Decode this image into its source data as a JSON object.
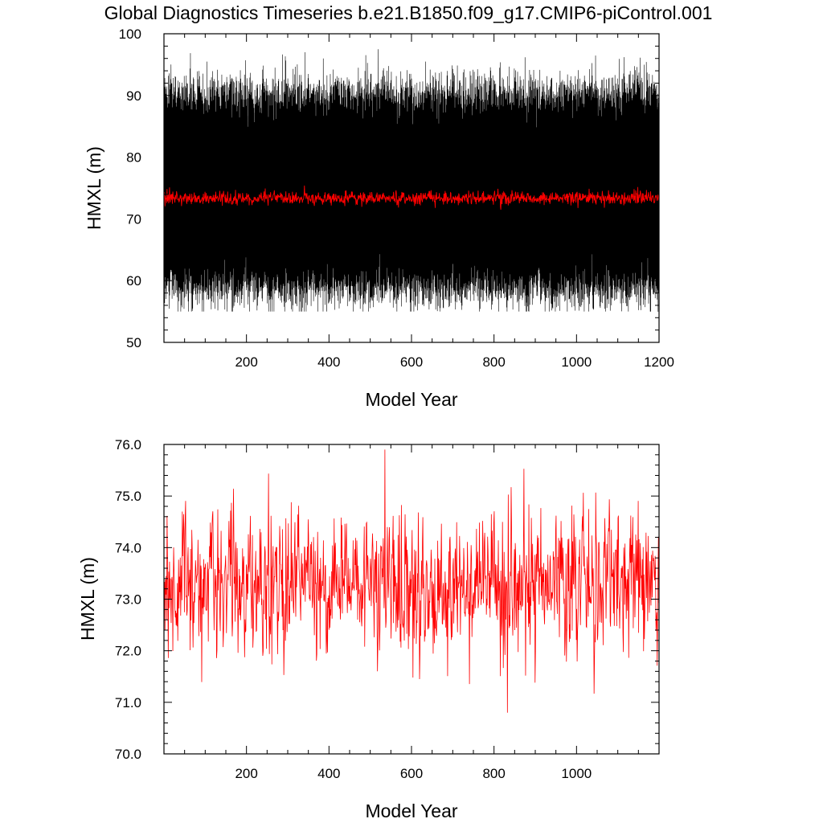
{
  "title": "Global Diagnostics Timeseries b.e21.B1850.f09_g17.CMIP6-piControl.001",
  "colors": {
    "monthly": "#000000",
    "annual": "#ff0000"
  },
  "chart_data": [
    {
      "type": "line",
      "xlabel": "Model Year",
      "ylabel": "HMXL (m)",
      "xlim": [
        0,
        1200
      ],
      "ylim": [
        50,
        100
      ],
      "xticks": [
        "200",
        "400",
        "600",
        "800",
        "1000",
        "1200"
      ],
      "yticks": [
        "50",
        "60",
        "70",
        "80",
        "90",
        "100"
      ],
      "grid": false,
      "series": [
        {
          "color": "#000000",
          "resolution": "monthly",
          "seasonal_mean": 74.5,
          "seasonal_amplitude": 15.5,
          "noise": 2.0,
          "min": 55,
          "max": 97.5
        },
        {
          "color": "#ff0000",
          "resolution": "annual",
          "mean": 73.4,
          "range": [
            71.5,
            75.6
          ]
        }
      ]
    },
    {
      "type": "line",
      "xlabel": "Model Year",
      "ylabel": "HMXL (m)",
      "xlim": [
        0,
        1200
      ],
      "ylim": [
        70.0,
        76.0
      ],
      "xticks": [
        "200",
        "400",
        "600",
        "800",
        "1000"
      ],
      "yticks": [
        "70.0",
        "71.0",
        "72.0",
        "73.0",
        "74.0",
        "75.0",
        "76.0"
      ],
      "grid": false,
      "series": [
        {
          "color": "#ff0000",
          "resolution": "annual",
          "mean": 73.3,
          "std": 0.65,
          "min": 70.8,
          "max": 75.9
        }
      ]
    }
  ]
}
